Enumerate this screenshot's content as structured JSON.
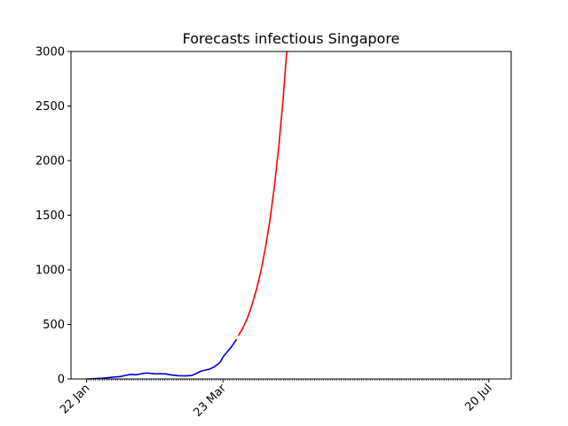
{
  "chart_data": {
    "type": "line",
    "title": "Forecasts infectious Singapore",
    "xlabel": "",
    "ylabel": "",
    "x_axis": {
      "kind": "date",
      "range": [
        "2020-01-15",
        "2020-07-30"
      ],
      "ticks": [
        {
          "date": "2020-01-22",
          "label": "22 Jan"
        },
        {
          "date": "2020-03-23",
          "label": "23 Mar"
        },
        {
          "date": "2020-07-20",
          "label": "20 Jul"
        }
      ],
      "minor_ticks": "daily"
    },
    "y_axis": {
      "range": [
        0,
        3000
      ],
      "ticks": [
        0,
        500,
        1000,
        1500,
        2000,
        2500,
        3000
      ]
    },
    "grid": false,
    "legend": "none",
    "series": [
      {
        "kind": "observed",
        "color": "#0000cc",
        "points": [
          {
            "x": "2020-01-22",
            "y": 0
          },
          {
            "x": "2020-01-25",
            "y": 3
          },
          {
            "x": "2020-01-29",
            "y": 7
          },
          {
            "x": "2020-02-02",
            "y": 15
          },
          {
            "x": "2020-02-06",
            "y": 22
          },
          {
            "x": "2020-02-09",
            "y": 35
          },
          {
            "x": "2020-02-11",
            "y": 42
          },
          {
            "x": "2020-02-13",
            "y": 38
          },
          {
            "x": "2020-02-16",
            "y": 50
          },
          {
            "x": "2020-02-18",
            "y": 55
          },
          {
            "x": "2020-02-21",
            "y": 48
          },
          {
            "x": "2020-02-26",
            "y": 47
          },
          {
            "x": "2020-02-29",
            "y": 36
          },
          {
            "x": "2020-03-03",
            "y": 30
          },
          {
            "x": "2020-03-06",
            "y": 28
          },
          {
            "x": "2020-03-09",
            "y": 32
          },
          {
            "x": "2020-03-11",
            "y": 50
          },
          {
            "x": "2020-03-13",
            "y": 70
          },
          {
            "x": "2020-03-15",
            "y": 80
          },
          {
            "x": "2020-03-17",
            "y": 90
          },
          {
            "x": "2020-03-19",
            "y": 110
          },
          {
            "x": "2020-03-21",
            "y": 140
          },
          {
            "x": "2020-03-22",
            "y": 160
          },
          {
            "x": "2020-03-23",
            "y": 200
          },
          {
            "x": "2020-03-25",
            "y": 250
          },
          {
            "x": "2020-03-27",
            "y": 300
          },
          {
            "x": "2020-03-29",
            "y": 360
          }
        ]
      },
      {
        "kind": "forecast",
        "color": "#ff0000",
        "points": [
          {
            "x": "2020-03-30",
            "y": 400
          },
          {
            "x": "2020-04-01",
            "y": 470
          },
          {
            "x": "2020-04-03",
            "y": 560
          },
          {
            "x": "2020-04-05",
            "y": 680
          },
          {
            "x": "2020-04-07",
            "y": 820
          },
          {
            "x": "2020-04-09",
            "y": 990
          },
          {
            "x": "2020-04-11",
            "y": 1200
          },
          {
            "x": "2020-04-13",
            "y": 1450
          },
          {
            "x": "2020-04-15",
            "y": 1760
          },
          {
            "x": "2020-04-17",
            "y": 2130
          },
          {
            "x": "2020-04-19",
            "y": 2580
          },
          {
            "x": "2020-04-21",
            "y": 3130
          }
        ]
      }
    ]
  }
}
